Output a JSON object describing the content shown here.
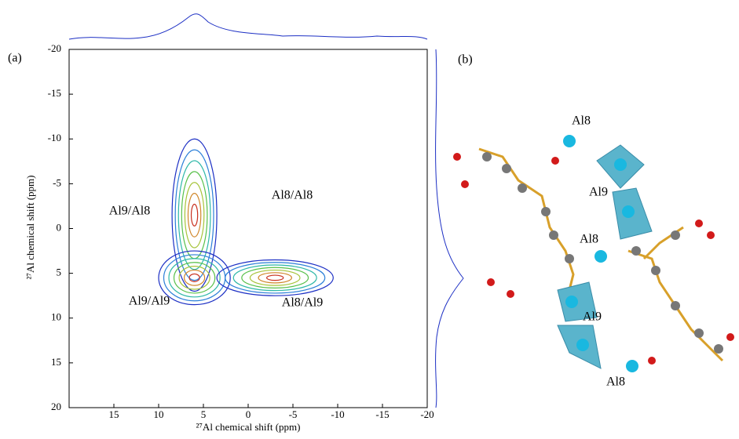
{
  "chart_data": {
    "type": "contour",
    "panel_label": "(a)",
    "x_label": "²⁷Al chemical shift (ppm)",
    "y_label": "²⁷Al chemical shift (ppm)",
    "xlim": [
      20,
      -20
    ],
    "xticks": [
      15,
      10,
      5,
      0,
      -5,
      -10,
      -15,
      -20
    ],
    "ylim": [
      -20,
      20
    ],
    "yticks": [
      -20,
      -15,
      -10,
      -5,
      0,
      5,
      10,
      15,
      20
    ],
    "peaks": [
      {
        "x": 6,
        "y": -1.5,
        "x_width": 2.5,
        "y_width": 8.5
      },
      {
        "x": 6,
        "y": 5.5,
        "x_width": 4,
        "y_width": 3
      },
      {
        "x": -3,
        "y": 5.5,
        "x_width": 6.5,
        "y_width": 2
      }
    ],
    "level_colors": [
      "#1c2fc4",
      "#2b7fd8",
      "#2fb8a8",
      "#58c04a",
      "#a6c43a",
      "#d0862a",
      "#c8301e"
    ],
    "annotations": [
      "Al9/Al8",
      "Al8/Al8",
      "Al9/Al9",
      "Al8/Al9"
    ]
  },
  "panel_b": {
    "panel_label": "(b)",
    "atom_labels": [
      "Al8",
      "Al9",
      "Al8",
      "Al9",
      "Al8"
    ]
  }
}
